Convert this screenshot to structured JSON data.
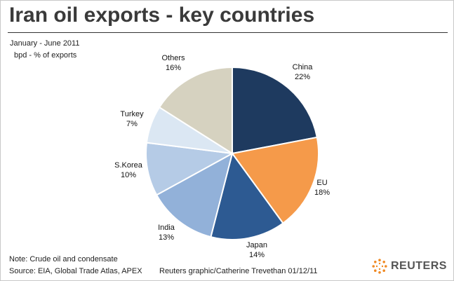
{
  "header": {
    "title": "Iran oil exports - key countries",
    "subtitle": "January - June 2011",
    "units": "bpd - % of exports"
  },
  "footer": {
    "note": "Note: Crude oil and condensate",
    "source": "Source: EIA, Global Trade Atlas, APEX",
    "credit": "Reuters graphic/Catherine Trevethan 01/12/11",
    "brand": "REUTERS",
    "brand_icon": "reuters-dots-logo"
  },
  "chart_data": {
    "type": "pie",
    "title": "Iran oil exports - key countries",
    "subtitle": "January - June 2011",
    "unit_label": "bpd - % of exports",
    "start_angle_deg": 0,
    "direction": "clockwise",
    "slices": [
      {
        "label": "China",
        "value": 22,
        "value_label": "22%",
        "color": "#1e3a5f"
      },
      {
        "label": "EU",
        "value": 18,
        "value_label": "18%",
        "color": "#f59a4a"
      },
      {
        "label": "Japan",
        "value": 14,
        "value_label": "14%",
        "color": "#2d5a92"
      },
      {
        "label": "India",
        "value": 13,
        "value_label": "13%",
        "color": "#92b1d9"
      },
      {
        "label": "S.Korea",
        "value": 10,
        "value_label": "10%",
        "color": "#b5cbe6"
      },
      {
        "label": "Turkey",
        "value": 7,
        "value_label": "7%",
        "color": "#dbe7f3"
      },
      {
        "label": "Others",
        "value": 16,
        "value_label": "16%",
        "color": "#d6d2c0"
      }
    ]
  }
}
